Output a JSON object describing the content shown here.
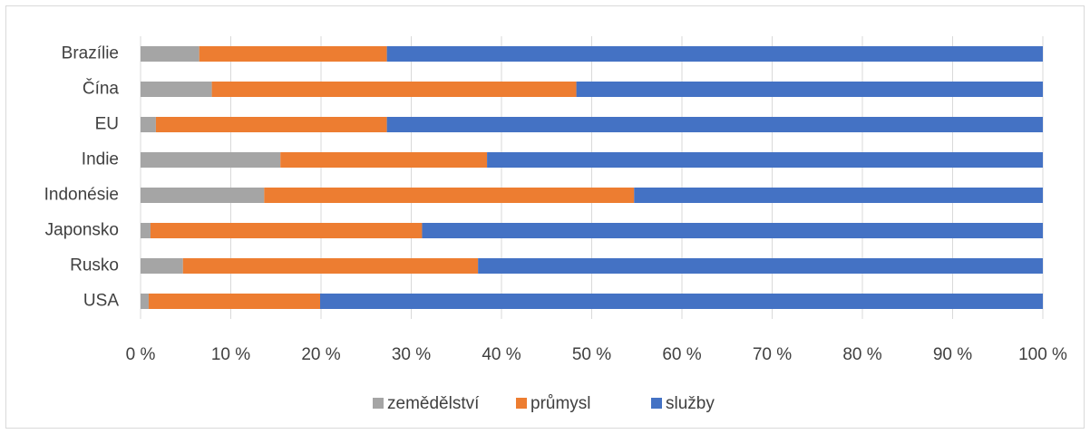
{
  "chart_data": {
    "type": "bar",
    "orientation": "horizontal",
    "stacked": true,
    "categories": [
      "Brazílie",
      "Čína",
      "EU",
      "Indie",
      "Indonésie",
      "Japonsko",
      "Rusko",
      "USA"
    ],
    "series": [
      {
        "name": "zemědělství",
        "color": "#a5a5a5",
        "values": [
          6.5,
          7.9,
          1.7,
          15.5,
          13.7,
          1.1,
          4.7,
          0.9
        ]
      },
      {
        "name": "průmysl",
        "color": "#ed7d31",
        "values": [
          20.8,
          40.4,
          25.6,
          22.9,
          41.0,
          30.1,
          32.7,
          19.0
        ]
      },
      {
        "name": "služby",
        "color": "#4472c4",
        "values": [
          72.7,
          51.7,
          72.7,
          61.6,
          45.3,
          68.8,
          62.6,
          80.1
        ]
      }
    ],
    "xlim": [
      0,
      100
    ],
    "xticks": [
      {
        "value": 0,
        "label": "0 %"
      },
      {
        "value": 10,
        "label": "10 %"
      },
      {
        "value": 20,
        "label": "20 %"
      },
      {
        "value": 30,
        "label": "30 %"
      },
      {
        "value": 40,
        "label": "40 %"
      },
      {
        "value": 50,
        "label": "50 %"
      },
      {
        "value": 60,
        "label": "60 %"
      },
      {
        "value": 70,
        "label": "70 %"
      },
      {
        "value": 80,
        "label": "80 %"
      },
      {
        "value": 90,
        "label": "90 %"
      },
      {
        "value": 100,
        "label": "100 %"
      }
    ],
    "grid": true,
    "legend": "bottom"
  }
}
